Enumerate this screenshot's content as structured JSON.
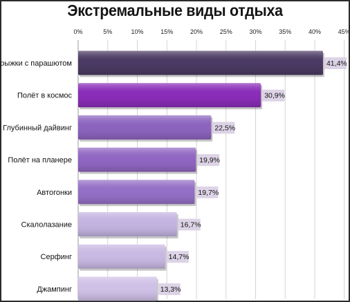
{
  "chart_data": {
    "type": "bar",
    "orientation": "horizontal",
    "title": "Экстремальные виды отдыха",
    "categories": [
      "Прыжки с парашютом",
      "Полёт в космос",
      "Глубинный дайвинг",
      "Полёт на планере",
      "Автогонки",
      "Скалолазание",
      "Серфинг",
      "Джампинг"
    ],
    "values": [
      41.4,
      30.9,
      22.5,
      19.9,
      19.7,
      16.7,
      14.7,
      13.3
    ],
    "data_labels": [
      "41,4%",
      "30,9%",
      "22,5%",
      "19,9%",
      "19,7%",
      "16,7%",
      "14,7%",
      "13,3%"
    ],
    "xlim": [
      0,
      45
    ],
    "x_ticks": [
      "0%",
      "5%",
      "10%",
      "15%",
      "20%",
      "25%",
      "30%",
      "35%",
      "40%",
      "45%"
    ],
    "x_axis_position": "top",
    "grid": true,
    "bar_colors": [
      "#4b3a63",
      "#8a2db8",
      "#8c64bf",
      "#9066c2",
      "#9470c6",
      "#c3b3e0",
      "#c8b8e3",
      "#cfc0e6"
    ],
    "label_box_color": "#ddd3e6"
  }
}
